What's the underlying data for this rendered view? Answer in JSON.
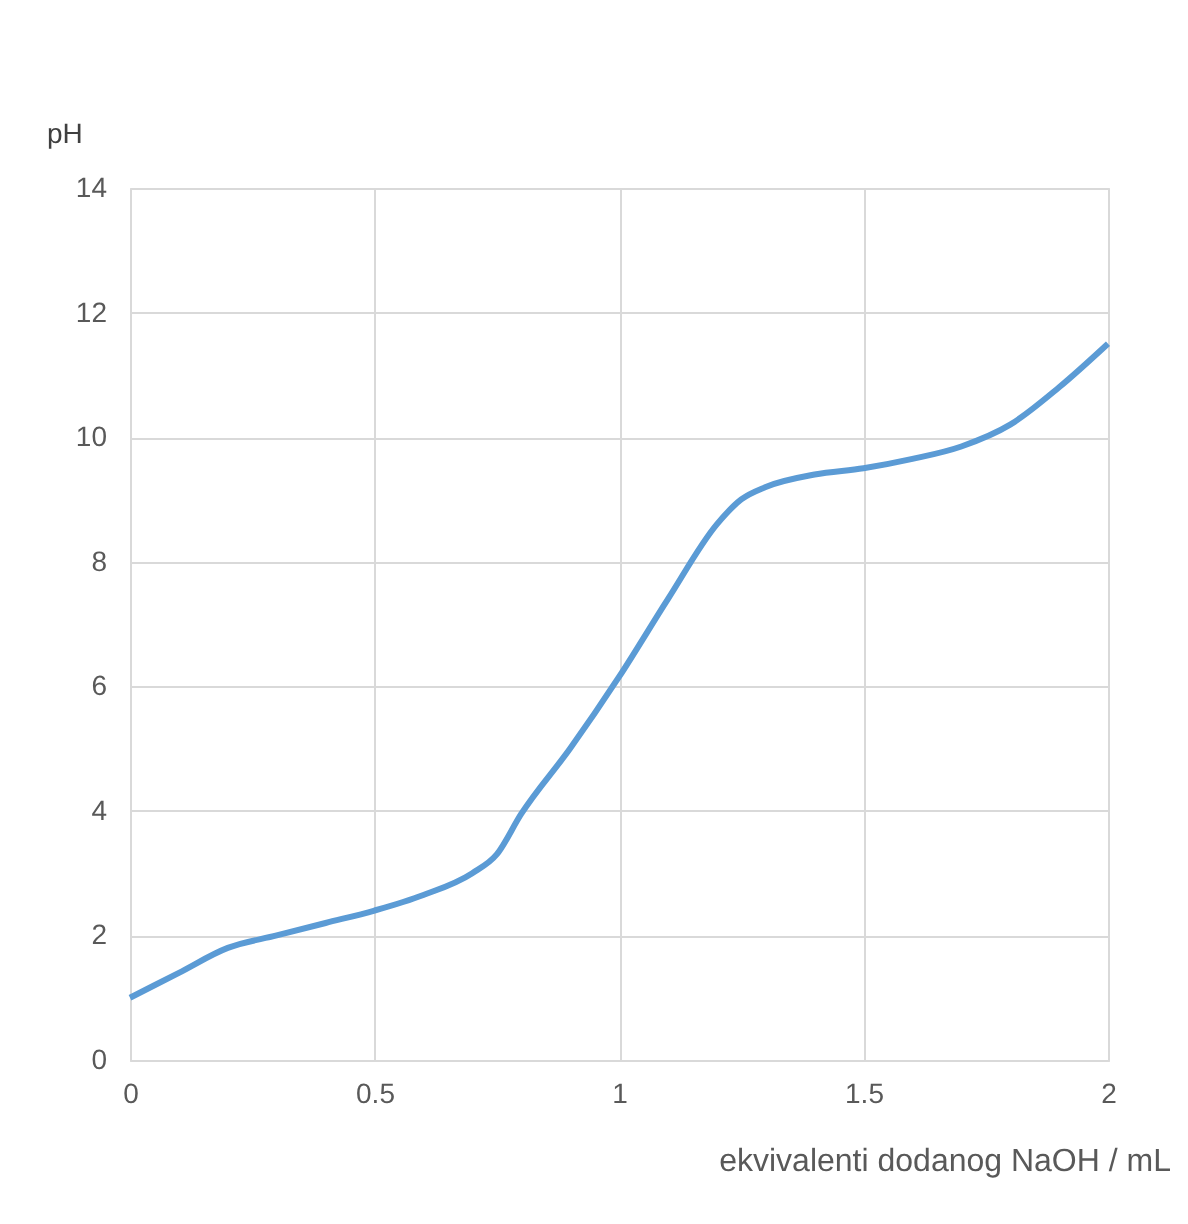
{
  "chart_data": {
    "type": "line",
    "xlabel": "ekvivalenti dodanog NaOH / mL",
    "ylabel": "pH",
    "x": [
      0,
      0.1,
      0.2,
      0.3,
      0.4,
      0.5,
      0.6,
      0.7,
      0.75,
      0.8,
      0.9,
      1.0,
      1.1,
      1.2,
      1.25,
      1.3,
      1.4,
      1.5,
      1.6,
      1.7,
      1.8,
      1.9,
      2.0
    ],
    "series": [
      {
        "color": "#5b9bd5",
        "values": [
          1.0,
          1.4,
          1.8,
          2.0,
          2.2,
          2.4,
          2.65,
          3.0,
          3.3,
          3.95,
          5.0,
          6.15,
          7.4,
          8.6,
          9.0,
          9.2,
          9.4,
          9.5,
          9.65,
          9.85,
          10.2,
          10.8,
          11.5
        ]
      }
    ],
    "xlim": [
      0,
      2
    ],
    "xticks": [
      0,
      0.5,
      1,
      1.5,
      2
    ],
    "ylim": [
      0,
      14
    ],
    "yticks": [
      0,
      2,
      4,
      6,
      8,
      10,
      12,
      14
    ],
    "grid": true,
    "marker": "none",
    "line_style": "solid"
  }
}
